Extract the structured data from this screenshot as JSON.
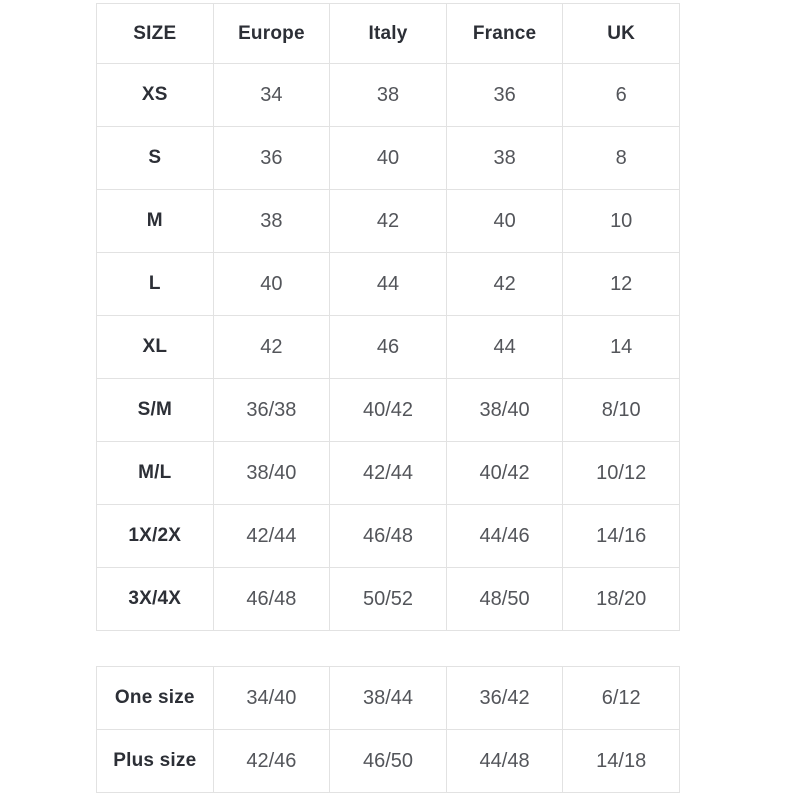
{
  "colors": {
    "background": "#ffffff",
    "border": "#e2e2e2",
    "header_text": "#2c2f36",
    "value_text": "#53555a"
  },
  "chart_data": [
    {
      "type": "table",
      "columns": [
        "SIZE",
        "Europe",
        "Italy",
        "France",
        "UK"
      ],
      "rows": [
        [
          "XS",
          "34",
          "38",
          "36",
          "6"
        ],
        [
          "S",
          "36",
          "40",
          "38",
          "8"
        ],
        [
          "M",
          "38",
          "42",
          "40",
          "10"
        ],
        [
          "L",
          "40",
          "44",
          "42",
          "12"
        ],
        [
          "XL",
          "42",
          "46",
          "44",
          "14"
        ],
        [
          "S/M",
          "36/38",
          "40/42",
          "38/40",
          "8/10"
        ],
        [
          "M/L",
          "38/40",
          "42/44",
          "40/42",
          "10/12"
        ],
        [
          "1X/2X",
          "42/44",
          "46/48",
          "44/46",
          "14/16"
        ],
        [
          "3X/4X",
          "46/48",
          "50/52",
          "48/50",
          "18/20"
        ]
      ],
      "layout": {
        "grid": true,
        "header_row": true,
        "cell_alignment": "center"
      }
    },
    {
      "type": "table",
      "rows": [
        [
          "One size",
          "34/40",
          "38/44",
          "36/42",
          "6/12"
        ],
        [
          "Plus size",
          "42/46",
          "46/50",
          "44/48",
          "14/18"
        ]
      ],
      "layout": {
        "grid": true,
        "header_row": false,
        "cell_alignment": "center"
      }
    }
  ]
}
